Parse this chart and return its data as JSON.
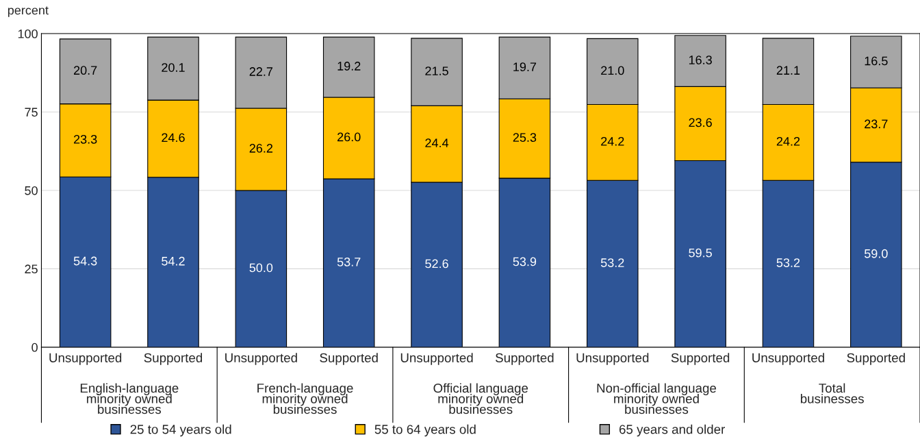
{
  "chart_data": {
    "type": "bar",
    "stacked": true,
    "ylabel": "percent",
    "categories": [
      "Unsupported",
      "Supported",
      "Unsupported",
      "Supported",
      "Unsupported",
      "Supported",
      "Unsupported",
      "Supported",
      "Unsupported",
      "Supported"
    ],
    "annotations": [
      "English-language\nminority owned\nbusinesses",
      "French-language\nminority owned\nbusinesses",
      "Official language\nminority owned\nbusinesses",
      "Non-official language\nminority owned\nbusinesses",
      "Total\nbusinesses"
    ],
    "series": [
      {
        "name": "25 to 54 years old",
        "color": "#2e5597",
        "values": [
          54.3,
          54.2,
          50.0,
          53.7,
          52.6,
          53.9,
          53.2,
          59.5,
          53.2,
          59.0
        ],
        "value_labels": [
          "54.3",
          "54.2",
          "50.0",
          "53.7",
          "52.6",
          "53.9",
          "53.2",
          "59.5",
          "53.2",
          "59.0"
        ]
      },
      {
        "name": "55 to 64 years old",
        "color": "#ffc000",
        "values": [
          23.3,
          24.6,
          26.2,
          26.0,
          24.4,
          25.3,
          24.2,
          23.6,
          24.2,
          23.7
        ],
        "value_labels": [
          "23.3",
          "24.6",
          "26.2",
          "26.0",
          "24.4",
          "25.3",
          "24.2",
          "23.6",
          "24.2",
          "23.7"
        ]
      },
      {
        "name": "65 years and older",
        "color": "#a6a6a6",
        "values": [
          20.7,
          20.1,
          22.7,
          19.2,
          21.5,
          19.7,
          21.0,
          16.3,
          21.1,
          16.5
        ],
        "value_labels": [
          "20.7",
          "20.1",
          "22.7",
          "19.2",
          "21.5",
          "19.7",
          "21.0",
          "16.3",
          "21.1",
          "16.5"
        ]
      }
    ],
    "ylim": [
      0,
      100
    ],
    "yticks": [
      0,
      25,
      50,
      75,
      100
    ],
    "grid": "y",
    "legend": "bottom"
  }
}
